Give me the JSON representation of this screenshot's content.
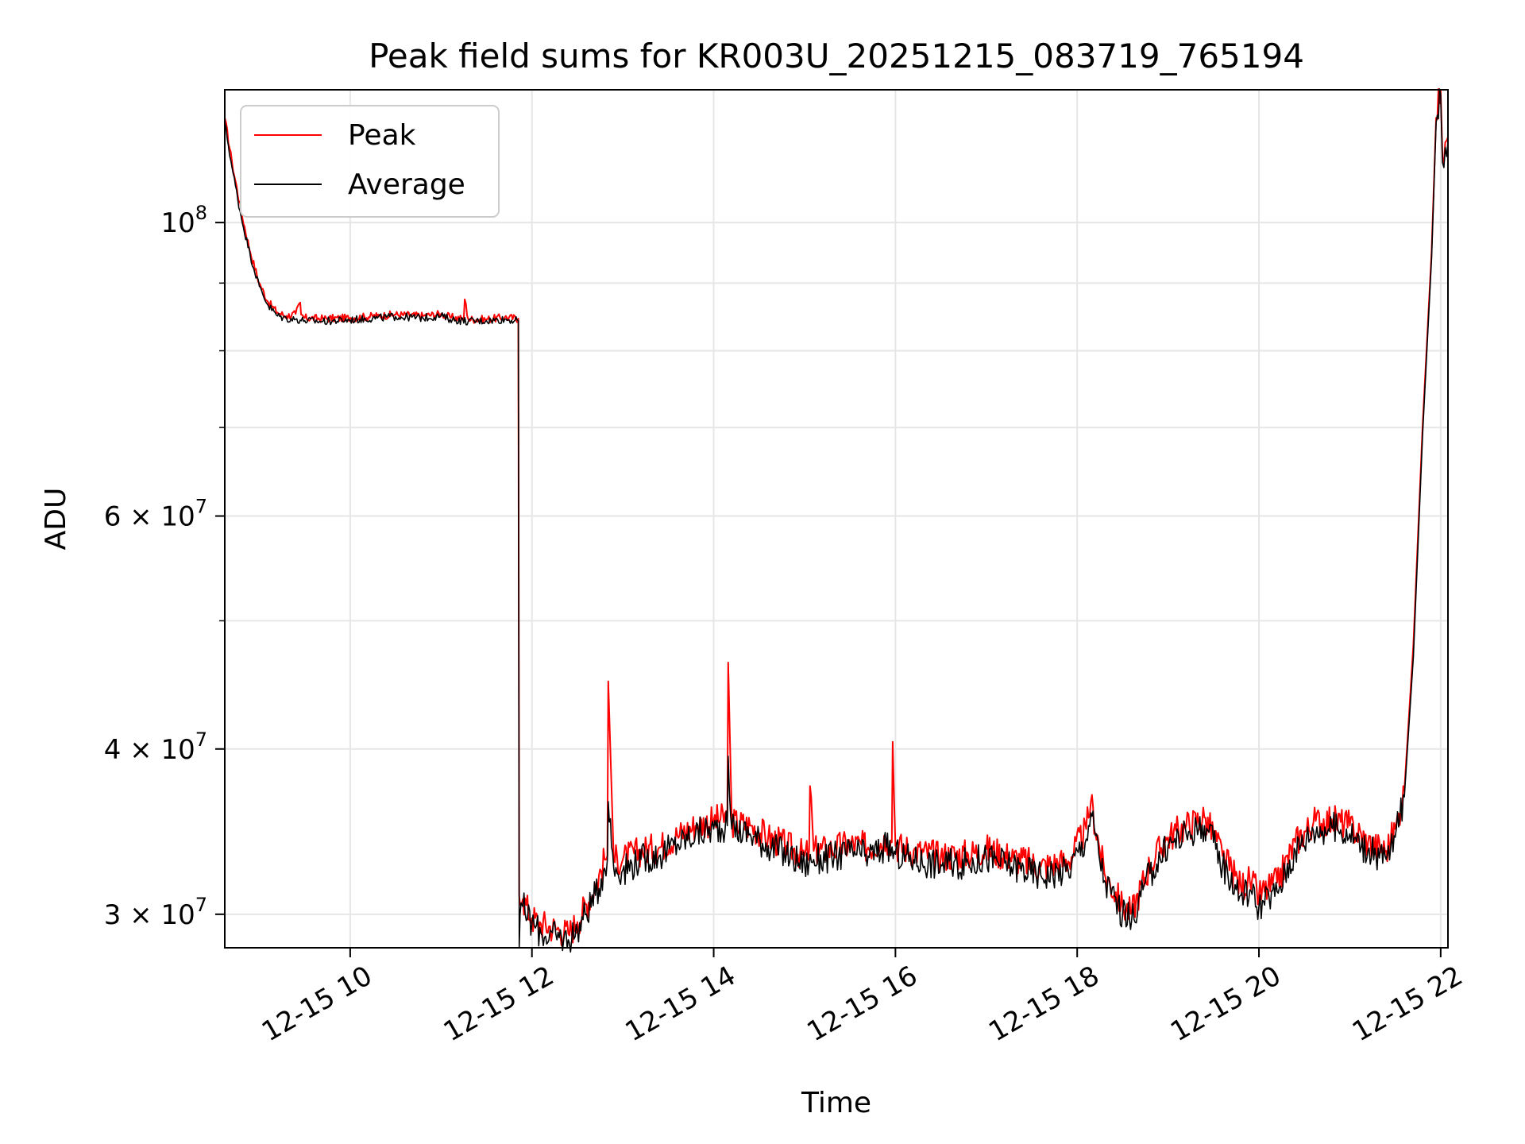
{
  "chart_data": {
    "type": "line",
    "title": "Peak field sums for KR003U_20251215_083719_765194",
    "xlabel": "Time",
    "ylabel": "ADU",
    "yscale": "log",
    "grid": true,
    "legend_position": "top-left",
    "xlim_hours": [
      8.62,
      22.08
    ],
    "ylim": [
      28300000,
      126000000
    ],
    "x_ticks": [
      {
        "hour": 10,
        "label": "12-15 10"
      },
      {
        "hour": 12,
        "label": "12-15 12"
      },
      {
        "hour": 14,
        "label": "12-15 14"
      },
      {
        "hour": 16,
        "label": "12-15 16"
      },
      {
        "hour": 18,
        "label": "12-15 18"
      },
      {
        "hour": 20,
        "label": "12-15 20"
      },
      {
        "hour": 22,
        "label": "12-15 22"
      }
    ],
    "y_ticks": [
      {
        "value": 30000000,
        "mantissa": "3",
        "exponent": "7"
      },
      {
        "value": 40000000,
        "mantissa": "4",
        "exponent": "7"
      },
      {
        "value": 60000000,
        "mantissa": "6",
        "exponent": "7"
      },
      {
        "value": 100000000,
        "base": "10",
        "exponent": "8"
      }
    ],
    "y_minor_ticks": [
      50000000,
      70000000,
      80000000,
      90000000
    ],
    "series": [
      {
        "name": "Peak",
        "color": "#ff0000",
        "x_hours": [
          8.62,
          8.7,
          8.8,
          8.9,
          9.0,
          9.1,
          9.2,
          9.3,
          9.4,
          9.45,
          9.46,
          9.5,
          9.7,
          10.0,
          10.3,
          10.5,
          10.8,
          11.0,
          11.1,
          11.25,
          11.26,
          11.3,
          11.5,
          11.7,
          11.85,
          11.86,
          11.87,
          11.9,
          12.0,
          12.1,
          12.3,
          12.4,
          12.5,
          12.7,
          12.8,
          12.83,
          12.84,
          12.9,
          13.0,
          13.2,
          13.4,
          13.6,
          13.8,
          14.0,
          14.15,
          14.16,
          14.2,
          14.4,
          14.6,
          14.8,
          15.0,
          15.05,
          15.06,
          15.1,
          15.3,
          15.5,
          15.7,
          15.9,
          15.96,
          15.97,
          16.0,
          16.2,
          16.5,
          16.8,
          17.0,
          17.3,
          17.6,
          17.9,
          18.1,
          18.15,
          18.3,
          18.5,
          18.6,
          18.8,
          19.0,
          19.2,
          19.4,
          19.5,
          19.6,
          19.8,
          19.9,
          20.0,
          20.2,
          20.4,
          20.6,
          20.8,
          21.0,
          21.2,
          21.4,
          21.5,
          21.6,
          21.7,
          21.8,
          21.9,
          21.95,
          22.0,
          22.02,
          22.05,
          22.08
        ],
        "values": [
          120000000,
          111000000,
          102000000,
          95000000,
          90000000,
          87000000,
          85500000,
          85000000,
          85300000,
          87000000,
          85200000,
          84700000,
          84600000,
          84700000,
          85000000,
          85200000,
          85000000,
          85300000,
          84800000,
          84600000,
          87500000,
          84500000,
          84500000,
          84800000,
          84600000,
          31000000,
          30500000,
          30800000,
          29800000,
          29500000,
          29200000,
          29000000,
          29600000,
          31500000,
          33000000,
          33200000,
          45000000,
          33000000,
          33000000,
          33500000,
          33700000,
          34400000,
          35000000,
          35300000,
          35500000,
          46500000,
          35200000,
          35000000,
          34300000,
          33800000,
          33200000,
          33500000,
          37500000,
          33500000,
          33600000,
          33900000,
          33700000,
          34200000,
          34000000,
          40500000,
          33800000,
          33500000,
          33200000,
          33300000,
          33600000,
          33100000,
          32600000,
          32900000,
          34800000,
          36500000,
          32200000,
          30400000,
          30100000,
          32700000,
          34300000,
          35000000,
          35500000,
          34500000,
          33200000,
          31500000,
          31800000,
          31000000,
          31700000,
          34000000,
          35200000,
          35400000,
          35000000,
          34000000,
          33500000,
          34800000,
          37200000,
          48000000,
          70000000,
          95000000,
          120000000,
          126000000,
          112000000,
          115000000,
          116000000
        ]
      },
      {
        "name": "Average",
        "color": "#000000",
        "x_hours": [
          8.62,
          8.7,
          8.8,
          8.9,
          9.0,
          9.1,
          9.2,
          9.3,
          9.4,
          9.5,
          9.7,
          10.0,
          10.3,
          10.5,
          10.8,
          11.0,
          11.1,
          11.3,
          11.5,
          11.7,
          11.85,
          11.86,
          11.87,
          11.88,
          11.9,
          12.0,
          12.1,
          12.3,
          12.4,
          12.5,
          12.7,
          12.8,
          12.83,
          12.84,
          12.9,
          13.0,
          13.2,
          13.4,
          13.6,
          13.8,
          14.0,
          14.15,
          14.16,
          14.2,
          14.4,
          14.6,
          14.8,
          15.0,
          15.1,
          15.3,
          15.5,
          15.7,
          15.9,
          16.0,
          16.2,
          16.5,
          16.8,
          17.0,
          17.3,
          17.6,
          17.9,
          18.1,
          18.15,
          18.3,
          18.5,
          18.6,
          18.8,
          19.0,
          19.2,
          19.4,
          19.5,
          19.6,
          19.8,
          19.9,
          20.0,
          20.2,
          20.4,
          20.6,
          20.8,
          21.0,
          21.2,
          21.4,
          21.5,
          21.6,
          21.7,
          21.8,
          21.9,
          21.95,
          22.0,
          22.02,
          22.05,
          22.08
        ],
        "values": [
          119000000,
          110000000,
          101000000,
          94500000,
          89500000,
          86500000,
          85000000,
          84600000,
          84500000,
          84300000,
          84200000,
          84400000,
          84700000,
          84900000,
          84700000,
          85000000,
          84500000,
          84200000,
          84300000,
          84500000,
          84300000,
          28300000,
          30000000,
          30600000,
          30400000,
          29500000,
          29000000,
          28800000,
          28700000,
          29200000,
          31000000,
          32500000,
          33000000,
          36500000,
          32500000,
          32400000,
          33000000,
          33200000,
          33900000,
          34500000,
          34800000,
          35000000,
          39500000,
          34800000,
          34500000,
          33800000,
          33300000,
          32700000,
          33000000,
          33100000,
          33400000,
          33200000,
          33700000,
          33300000,
          33000000,
          32700000,
          32800000,
          33100000,
          32600000,
          32100000,
          32400000,
          34200000,
          35800000,
          31800000,
          30000000,
          29700000,
          32200000,
          33800000,
          34500000,
          35000000,
          34000000,
          32700000,
          31000000,
          31300000,
          30400000,
          31200000,
          33500000,
          34700000,
          34900000,
          34500000,
          33500000,
          33000000,
          34300000,
          36800000,
          47000000,
          69000000,
          94000000,
          119000000,
          125000000,
          111000000,
          114000000,
          115000000
        ]
      }
    ]
  }
}
